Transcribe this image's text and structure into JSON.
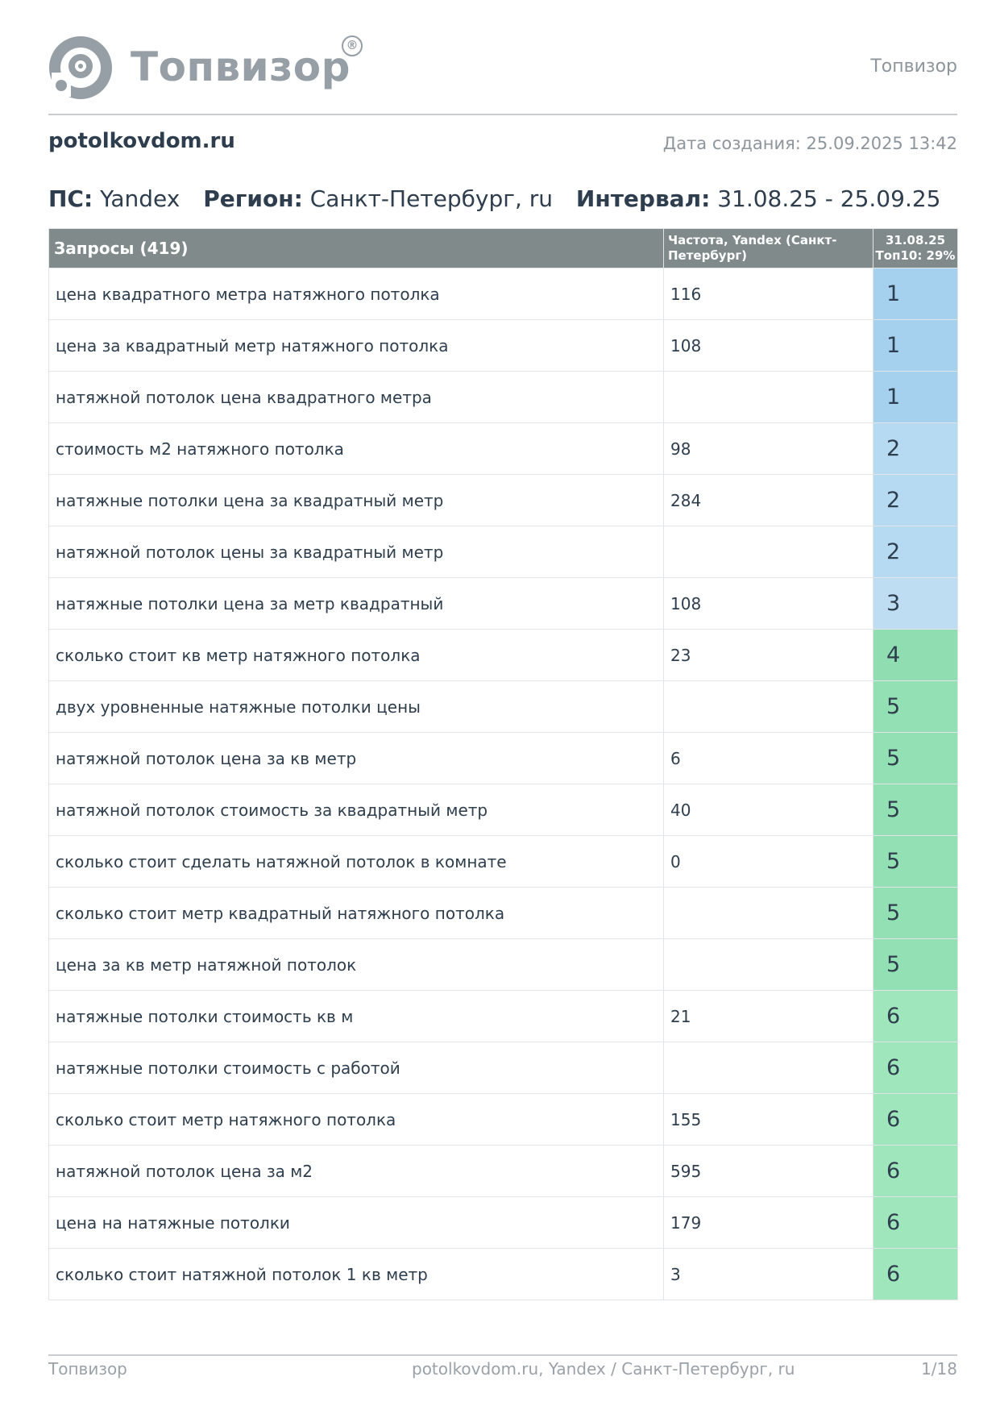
{
  "logo": {
    "text": "Топвизор",
    "reg": "®"
  },
  "header": {
    "right": "Топвизор"
  },
  "site": "potolkovdom.ru",
  "created": "Дата создания: 25.09.2025 13:42",
  "params": {
    "se_label": "ПС:",
    "se_value": "Yandex",
    "region_label": "Регион:",
    "region_value": "Санкт-Петербург, ru",
    "interval_label": "Интервал:",
    "interval_value": "31.08.25 - 25.09.25"
  },
  "table": {
    "header": {
      "queries": "Запросы (419)",
      "freq": "Частота, Yandex (Санкт-Петербург)",
      "date": "31.08.25",
      "top10": "Топ10: 29%"
    },
    "rows": [
      {
        "query": "цена квадратного метра натяжного потолка",
        "freq": "116",
        "pos": "1",
        "color": "#a5d0ee"
      },
      {
        "query": "цена за квадратный метр натяжного потолка",
        "freq": "108",
        "pos": "1",
        "color": "#a5d0ee"
      },
      {
        "query": "натяжной потолок цена квадратного метра",
        "freq": "",
        "pos": "1",
        "color": "#a5d0ee"
      },
      {
        "query": "стоимость м2 натяжного потолка",
        "freq": "98",
        "pos": "2",
        "color": "#b7daf3"
      },
      {
        "query": "натяжные потолки цена за квадратный метр",
        "freq": "284",
        "pos": "2",
        "color": "#b7daf3"
      },
      {
        "query": "натяжной потолок цены за квадратный метр",
        "freq": "",
        "pos": "2",
        "color": "#b7daf3"
      },
      {
        "query": "натяжные потолки цена за метр квадратный",
        "freq": "108",
        "pos": "3",
        "color": "#bedcf2"
      },
      {
        "query": "сколько стоит кв метр натяжного потолка",
        "freq": "23",
        "pos": "4",
        "color": "#8fddb0"
      },
      {
        "query": "двух уровненные натяжные потолки цены",
        "freq": "",
        "pos": "5",
        "color": "#93e0b4"
      },
      {
        "query": "натяжной потолок цена за кв метр",
        "freq": "6",
        "pos": "5",
        "color": "#93e0b4"
      },
      {
        "query": "натяжной потолок стоимость за квадратный метр",
        "freq": "40",
        "pos": "5",
        "color": "#93e0b4"
      },
      {
        "query": "сколько стоит сделать натяжной потолок в комнате",
        "freq": "0",
        "pos": "5",
        "color": "#93e0b4"
      },
      {
        "query": "сколько стоит метр квадратный натяжного потолка",
        "freq": "",
        "pos": "5",
        "color": "#93e0b4"
      },
      {
        "query": "цена за кв метр натяжной потолок",
        "freq": "",
        "pos": "5",
        "color": "#93e0b4"
      },
      {
        "query": "натяжные потолки стоимость кв м",
        "freq": "21",
        "pos": "6",
        "color": "#9fe6bd"
      },
      {
        "query": "натяжные потолки стоимость с работой",
        "freq": "",
        "pos": "6",
        "color": "#9fe6bd"
      },
      {
        "query": "сколько стоит метр натяжного потолка",
        "freq": "155",
        "pos": "6",
        "color": "#9fe6bd"
      },
      {
        "query": "натяжной потолок цена за м2",
        "freq": "595",
        "pos": "6",
        "color": "#9fe6bd"
      },
      {
        "query": "цена на натяжные потолки",
        "freq": "179",
        "pos": "6",
        "color": "#9fe6bd"
      },
      {
        "query": "сколько стоит натяжной потолок 1 кв метр",
        "freq": "3",
        "pos": "6",
        "color": "#9fe6bd"
      }
    ]
  },
  "footer": {
    "left": "Топвизор",
    "center": "potolkovdom.ru, Yandex / Санкт-Петербург, ru",
    "right": "1/18"
  }
}
